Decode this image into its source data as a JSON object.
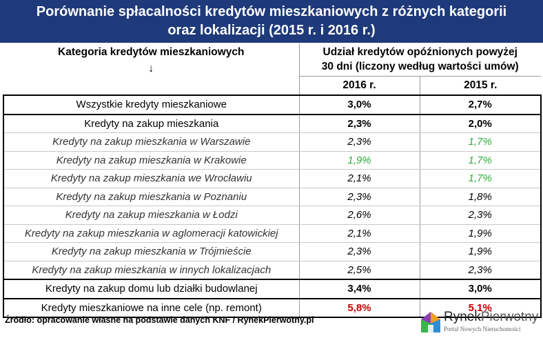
{
  "title": {
    "line1": "Porównanie spłacalności kredytów mieszkaniowych z różnych kategorii",
    "line2": "oraz lokalizacji (2015 r. i 2016 r.)"
  },
  "header": {
    "category": "Kategoria kredytów mieszkaniowych",
    "arrow": "↓",
    "share_line1": "Udział kredytów opóźnionych powyżej",
    "share_line2": "30 dni (liczony według wartości umów)",
    "year_2016": "2016 r.",
    "year_2015": "2015 r."
  },
  "rows": [
    {
      "label": "Wszystkie kredyty mieszkaniowe",
      "v2016": "3,0%",
      "v2015": "2,7%"
    },
    {
      "label": "Kredyty na zakup mieszkania",
      "v2016": "2,3%",
      "v2015": "2,0%"
    },
    {
      "label": "Kredyty na zakup mieszkania w Warszawie",
      "v2016": "2,3%",
      "v2015": "1,7%"
    },
    {
      "label": "Kredyty na zakup mieszkania w Krakowie",
      "v2016": "1,9%",
      "v2015": "1,7%"
    },
    {
      "label": "Kredyty na zakup mieszkania we Wrocławiu",
      "v2016": "2,1%",
      "v2015": "1,7%"
    },
    {
      "label": "Kredyty na zakup mieszkania w Poznaniu",
      "v2016": "2,3%",
      "v2015": "1,8%"
    },
    {
      "label": "Kredyty na zakup mieszkania w Łodzi",
      "v2016": "2,6%",
      "v2015": "2,3%"
    },
    {
      "label": "Kredyty na zakup mieszkania w aglomeracji katowickiej",
      "v2016": "2,1%",
      "v2015": "1,9%"
    },
    {
      "label": "Kredyty na zakup mieszkania w Trójmieście",
      "v2016": "2,3%",
      "v2015": "1,9%"
    },
    {
      "label": "Kredyty na zakup mieszkania w innych lokalizacjach",
      "v2016": "2,5%",
      "v2015": "2,3%"
    },
    {
      "label": "Kredyty na zakup domu lub działki budowlanej",
      "v2016": "3,4%",
      "v2015": "3,0%"
    },
    {
      "label": "Kredyty mieszkaniowe na inne cele (np. remont)",
      "v2016": "5,8%",
      "v2015": "5,1%"
    }
  ],
  "source": "Źródło: opracowanie własne na podstawie danych KNF / RynekPierwotny.pl",
  "logo": {
    "name_part1": "Rynek",
    "name_part2": "Pierwotny",
    "tagline": "Portal Nowych Nieruchomości"
  },
  "colors": {
    "title_bg": "#1f3a7a",
    "green": "#2eaa3a",
    "red": "#c00000"
  }
}
